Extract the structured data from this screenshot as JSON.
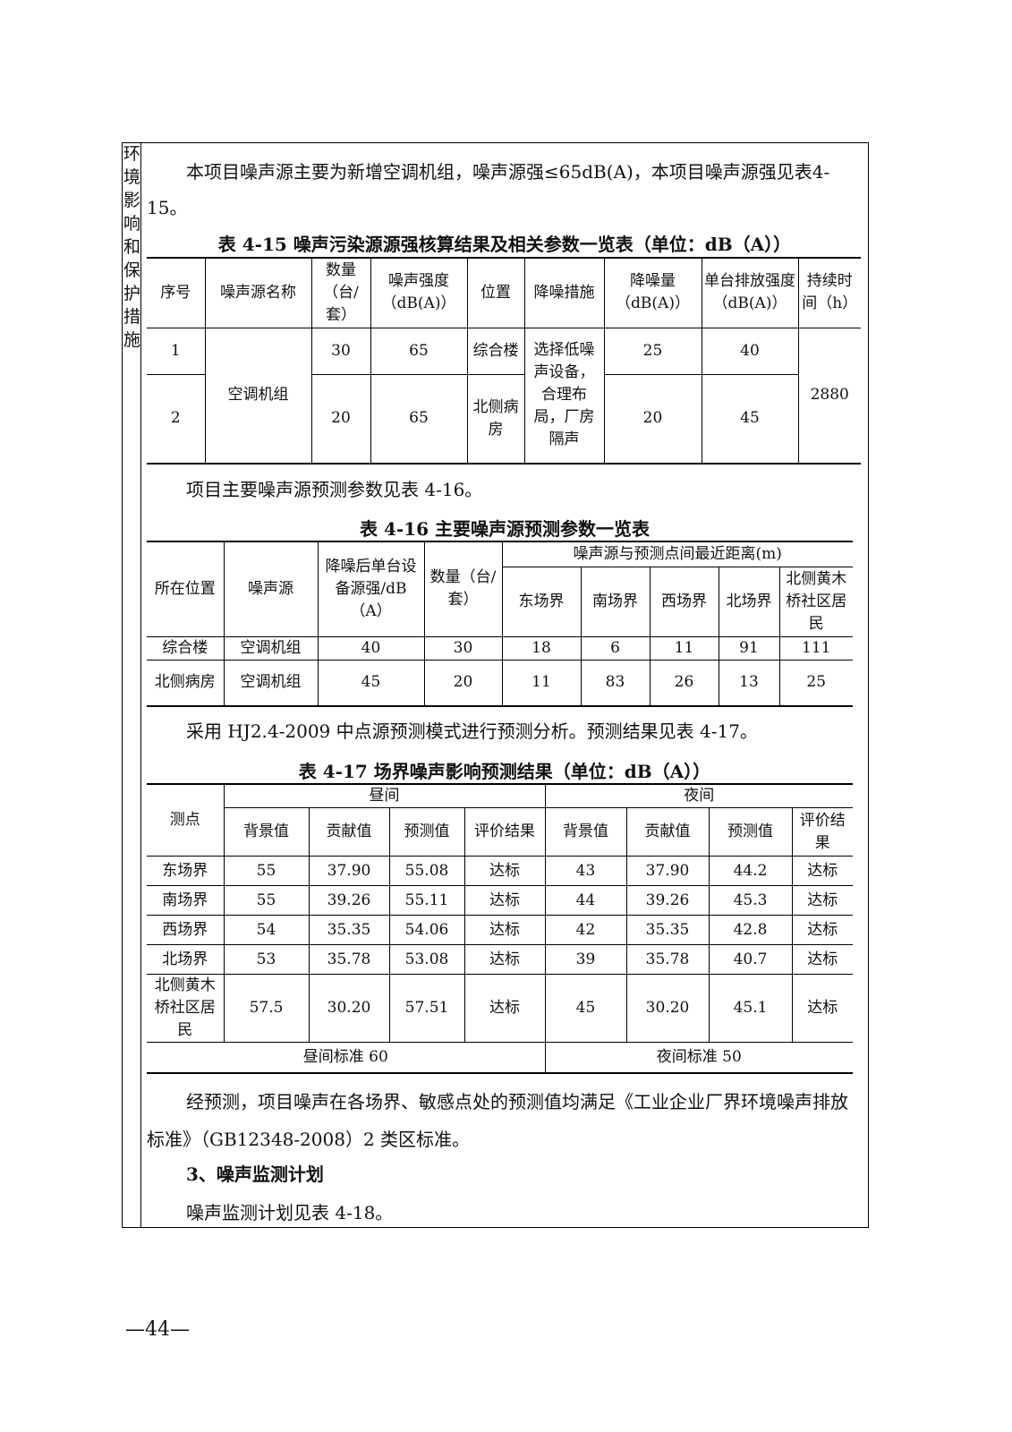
{
  "side_label": [
    "环",
    "境",
    "影",
    "响",
    "和",
    "保",
    "护",
    "措",
    "施"
  ],
  "para1": "本项目噪声源主要为新增空调机组，噪声源强≤65dB(A)，本项目噪声源强见表4-15。",
  "t15": {
    "caption": "表 4-15 噪声污染源源强核算结果及相关参数一览表（单位：dB（A））",
    "headers": [
      "序号",
      "噪声源名称",
      "数量（台/套）",
      "噪声强度（dB(A)）",
      "位置",
      "降噪措施",
      "降噪量（dB(A)）",
      "单台排放强度（dB(A)）",
      "持续时间（h）"
    ],
    "source_name": "空调机组",
    "measure": "选择低噪声设备，合理布局，厂房隔声",
    "duration": "2880",
    "rows": [
      {
        "no": "1",
        "qty": "30",
        "level": "65",
        "loc": "综合楼",
        "reduction": "25",
        "emission": "40"
      },
      {
        "no": "2",
        "qty": "20",
        "level": "65",
        "loc": "北侧病房",
        "reduction": "20",
        "emission": "45"
      }
    ]
  },
  "para2": "项目主要噪声源预测参数见表 4-16。",
  "t16": {
    "caption": "表 4-16 主要噪声源预测参数一览表",
    "headers": [
      "所在位置",
      "噪声源",
      "降噪后单台设备源强/dB（A）",
      "数量（台/套）"
    ],
    "group": "噪声源与预测点间最近距离(m)",
    "sub": [
      "东场界",
      "南场界",
      "西场界",
      "北场界",
      "北侧黄木桥社区居民"
    ],
    "rows": [
      [
        "综合楼",
        "空调机组",
        "40",
        "30",
        "18",
        "6",
        "11",
        "91",
        "111"
      ],
      [
        "北侧病房",
        "空调机组",
        "45",
        "20",
        "11",
        "83",
        "26",
        "13",
        "25"
      ]
    ]
  },
  "para3": "采用 HJ2.4-2009 中点源预测模式进行预测分析。预测结果见表 4-17。",
  "t17": {
    "caption": "表 4-17 场界噪声影响预测结果（单位：dB（A））",
    "point": "测点",
    "day": "昼间",
    "night": "夜间",
    "sub": [
      "背景值",
      "贡献值",
      "预测值",
      "评价结果",
      "背景值",
      "贡献值",
      "预测值",
      "评价结果"
    ],
    "rows": [
      [
        "东场界",
        "55",
        "37.90",
        "55.08",
        "达标",
        "43",
        "37.90",
        "44.2",
        "达标"
      ],
      [
        "南场界",
        "55",
        "39.26",
        "55.11",
        "达标",
        "44",
        "39.26",
        "45.3",
        "达标"
      ],
      [
        "西场界",
        "54",
        "35.35",
        "54.06",
        "达标",
        "42",
        "35.35",
        "42.8",
        "达标"
      ],
      [
        "北场界",
        "53",
        "35.78",
        "53.08",
        "达标",
        "39",
        "35.78",
        "40.7",
        "达标"
      ],
      [
        "北侧黄木桥社区居民",
        "57.5",
        "30.20",
        "57.51",
        "达标",
        "45",
        "30.20",
        "45.1",
        "达标"
      ]
    ],
    "day_std": "昼间标准 60",
    "night_std": "夜间标准 50"
  },
  "para4": "经预测，项目噪声在各场界、敏感点处的预测值均满足《工业企业厂界环境噪声排放标准》（GB12348-2008）2 类区标准。",
  "heading3": "3、噪声监测计划",
  "para5": "噪声监测计划见表 4-18。",
  "page_number": "—44—"
}
